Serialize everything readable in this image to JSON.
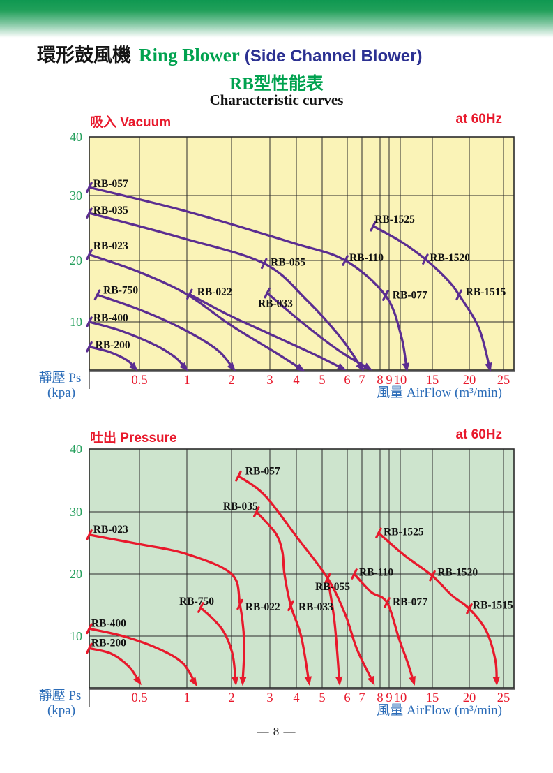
{
  "page": {
    "title_zh": "環形鼓風機",
    "title_en": "Ring Blower",
    "title_paren": "(Side Channel Blower)",
    "subtitle_zh": "RB型性能表",
    "subtitle_en": "Characteristic curves",
    "page_number": "— 8 —"
  },
  "colors": {
    "accent_green": "#00a24f",
    "navy": "#2c3192",
    "red": "#e8192c",
    "purple": "#5b2d91",
    "vacuum_bg": "#faf3b7",
    "pressure_bg": "#cde4cd",
    "caption_blue": "#2b6cb8",
    "ytick_green": "#27a05e",
    "grid": "#2a2a2a"
  },
  "axis_captions": {
    "y_zh": "靜壓",
    "y_en": "Ps",
    "y_unit": "(kpa)",
    "x_zh": "風量",
    "x_en": "AirFlow",
    "x_unit": "(m³/min)"
  },
  "chart_data": [
    {
      "type": "line",
      "title": "吸入 Vacuum",
      "condition": "at 60Hz",
      "bg_color": "#faf3b7",
      "curve_color": "#5b2d91",
      "xlabel": "風量 AirFlow (m³/min)",
      "ylabel": "靜壓 Ps (kpa)",
      "x_tick_labels": [
        "0.5",
        "1",
        "2",
        "3",
        "4",
        "5",
        "6",
        "7",
        "8",
        "9",
        "10",
        "15",
        "20",
        "25"
      ],
      "x_tick_values": [
        0.5,
        1,
        2,
        3,
        4,
        5,
        6,
        7,
        8,
        9,
        10,
        15,
        20,
        25
      ],
      "y_tick_labels": [
        "40",
        "30",
        "20",
        "10"
      ],
      "y_tick_values": [
        40,
        30,
        20,
        10
      ],
      "x_range": [
        0.25,
        25
      ],
      "y_range": [
        1.5,
        40
      ],
      "series": [
        {
          "name": "RB-057",
          "label_pos": [
            0.27,
            33.0
          ],
          "points": [
            [
              0.25,
              31.4
            ],
            [
              1.03,
              27.5
            ],
            [
              3.87,
              22.7
            ],
            [
              5.92,
              20.0
            ],
            [
              8.6,
              14.3
            ],
            [
              10.1,
              7.7
            ],
            [
              11.0,
              1.75
            ]
          ]
        },
        {
          "name": "RB-035",
          "label_pos": [
            0.27,
            28.6
          ],
          "points": [
            [
              0.25,
              27.3
            ],
            [
              0.94,
              23.5
            ],
            [
              2.85,
              19.5
            ],
            [
              4.41,
              13.5
            ],
            [
              5.78,
              7.0
            ],
            [
              7.0,
              1.75
            ]
          ]
        },
        {
          "name": "RB-023",
          "label_pos": [
            0.27,
            23.1
          ],
          "points": [
            [
              0.25,
              20.9
            ],
            [
              0.5,
              18.1
            ],
            [
              1.0,
              14.5
            ],
            [
              1.97,
              9.5
            ],
            [
              3.21,
              4.6
            ],
            [
              4.22,
              1.6
            ]
          ]
        },
        {
          "name": "RB-750",
          "label_pos": [
            0.32,
            16.1
          ],
          "points": [
            [
              0.29,
              14.4
            ],
            [
              0.5,
              12.0
            ],
            [
              0.94,
              8.9
            ],
            [
              1.66,
              5.2
            ],
            [
              2.05,
              1.75
            ]
          ]
        },
        {
          "name": "RB-400",
          "label_pos": [
            0.27,
            11.6
          ],
          "points": [
            [
              0.25,
              10.0
            ],
            [
              0.41,
              8.4
            ],
            [
              0.68,
              5.8
            ],
            [
              0.88,
              3.7
            ],
            [
              0.99,
              1.75
            ]
          ]
        },
        {
          "name": "RB-200",
          "label_pos": [
            0.28,
            6.9
          ],
          "points": [
            [
              0.25,
              5.6
            ],
            [
              0.35,
              4.7
            ],
            [
              0.44,
              3.2
            ],
            [
              0.48,
              1.75
            ]
          ]
        },
        {
          "name": "RB-022",
          "label_pos": [
            1.23,
            15.8
          ],
          "points": [
            [
              1.06,
              14.5
            ],
            [
              1.97,
              11.0
            ],
            [
              3.08,
              7.7
            ],
            [
              4.68,
              4.3
            ],
            [
              5.84,
              1.75
            ]
          ]
        },
        {
          "name": "RB-033",
          "label_pos": [
            2.69,
            13.9
          ],
          "points": [
            [
              2.93,
              14.7
            ],
            [
              4.41,
              9.2
            ],
            [
              5.78,
              4.6
            ],
            [
              7.42,
              1.75
            ]
          ]
        },
        {
          "name": "RB-055",
          "label_pos": [
            3.03,
            20.6
          ],
          "points": [],
          "mark": [
            2.85,
            19.5
          ]
        },
        {
          "name": "RB-110",
          "label_pos": [
            6.14,
            21.3
          ],
          "points": [],
          "mark": [
            5.92,
            20.0
          ]
        },
        {
          "name": "RB-077",
          "label_pos": [
            9.3,
            15.3
          ],
          "points": [],
          "mark": [
            8.6,
            14.3
          ]
        },
        {
          "name": "RB-1525",
          "label_pos": [
            7.7,
            27.2
          ],
          "points": [
            [
              7.62,
              25.3
            ],
            [
              10.1,
              22.9
            ],
            [
              13.9,
              20.2
            ],
            [
              17.0,
              16.9
            ],
            [
              18.6,
              14.4
            ],
            [
              21.4,
              8.9
            ],
            [
              23.0,
              1.75
            ]
          ]
        },
        {
          "name": "RB-1520",
          "label_pos": [
            14.6,
            21.3
          ],
          "points": [],
          "mark": [
            13.9,
            20.2
          ]
        },
        {
          "name": "RB-1515",
          "label_pos": [
            19.5,
            15.8
          ],
          "points": [],
          "mark": [
            18.6,
            14.4
          ]
        }
      ]
    },
    {
      "type": "line",
      "title": "吐出 Pressure",
      "condition": "at 60Hz",
      "bg_color": "#cde4cd",
      "curve_color": "#e8192c",
      "xlabel": "風量 AirFlow (m³/min)",
      "ylabel": "靜壓 Ps (kpa)",
      "x_tick_labels": [
        "0.5",
        "1",
        "2",
        "3",
        "4",
        "5",
        "6",
        "7",
        "8",
        "9",
        "10",
        "15",
        "20",
        "25"
      ],
      "x_tick_values": [
        0.5,
        1,
        2,
        3,
        4,
        5,
        6,
        7,
        8,
        9,
        10,
        15,
        20,
        25
      ],
      "y_tick_labels": [
        "40",
        "30",
        "20",
        "10"
      ],
      "y_tick_values": [
        40,
        30,
        20,
        10
      ],
      "x_range": [
        0.25,
        25
      ],
      "y_range": [
        1.5,
        40
      ],
      "series": [
        {
          "name": "RB-057",
          "label_pos": [
            2.36,
            37.4
          ],
          "points": [
            [
              2.18,
              35.7
            ],
            [
              2.87,
              32.6
            ],
            [
              4.08,
              25.6
            ],
            [
              5.22,
              19.3
            ],
            [
              5.92,
              13.5
            ],
            [
              6.67,
              7.8
            ],
            [
              7.62,
              2.4
            ]
          ]
        },
        {
          "name": "RB-035",
          "label_pos": [
            1.81,
            31.8
          ],
          "points": [
            [
              2.65,
              30.0
            ],
            [
              3.21,
              26.6
            ],
            [
              3.47,
              23.6
            ],
            [
              3.55,
              20.0
            ],
            [
              3.79,
              14.9
            ],
            [
              4.19,
              9.9
            ],
            [
              4.49,
              2.4
            ]
          ]
        },
        {
          "name": "RB-023",
          "label_pos": [
            0.27,
            28.1
          ],
          "points": [
            [
              0.25,
              26.3
            ],
            [
              0.5,
              24.8
            ],
            [
              1.0,
              23.2
            ],
            [
              2.0,
              20.0
            ],
            [
              2.22,
              15.1
            ],
            [
              2.33,
              9.0
            ],
            [
              2.29,
              2.4
            ]
          ]
        },
        {
          "name": "RB-750",
          "label_pos": [
            0.92,
            16.5
          ],
          "points": [
            [
              1.31,
              14.6
            ],
            [
              1.78,
              11.2
            ],
            [
              2.02,
              7.2
            ],
            [
              2.11,
              2.4
            ]
          ]
        },
        {
          "name": "RB-400",
          "label_pos": [
            0.26,
            13.0
          ],
          "points": [
            [
              0.25,
              11.2
            ],
            [
              0.43,
              9.9
            ],
            [
              0.72,
              7.8
            ],
            [
              0.96,
              5.5
            ],
            [
              1.19,
              2.2
            ]
          ]
        },
        {
          "name": "RB-200",
          "label_pos": [
            0.26,
            9.8
          ],
          "points": [
            [
              0.25,
              8.0
            ],
            [
              0.36,
              7.1
            ],
            [
              0.45,
              4.9
            ],
            [
              0.5,
              2.4
            ]
          ]
        },
        {
          "name": "RB-022",
          "label_pos": [
            2.36,
            15.6
          ],
          "points": [],
          "mark": [
            2.22,
            15.1
          ]
        },
        {
          "name": "RB-033",
          "label_pos": [
            4.08,
            15.6
          ],
          "points": [],
          "mark": [
            3.79,
            14.9
          ]
        },
        {
          "name": "RB-055",
          "label_pos": [
            4.73,
            18.9
          ],
          "points": [
            [
              5.22,
              19.3
            ],
            [
              5.49,
              12.4
            ],
            [
              5.69,
              2.4
            ]
          ]
        },
        {
          "name": "RB-110",
          "label_pos": [
            6.81,
            21.2
          ],
          "points": [
            [
              6.48,
              20.0
            ],
            [
              7.5,
              17.1
            ],
            [
              8.77,
              15.4
            ],
            [
              9.9,
              9.5
            ],
            [
              11.2,
              5.5
            ],
            [
              12.1,
              2.4
            ]
          ]
        },
        {
          "name": "RB-077",
          "label_pos": [
            9.31,
            16.4
          ],
          "points": [],
          "mark": [
            8.77,
            15.4
          ]
        },
        {
          "name": "RB-1525",
          "label_pos": [
            8.38,
            27.7
          ],
          "points": [
            [
              7.92,
              26.6
            ],
            [
              10.65,
              23.0
            ],
            [
              15.0,
              19.7
            ],
            [
              17.6,
              16.6
            ],
            [
              20.0,
              14.4
            ],
            [
              22.45,
              10.9
            ],
            [
              23.8,
              6.1
            ],
            [
              24.0,
              2.4
            ]
          ]
        },
        {
          "name": "RB-1520",
          "label_pos": [
            15.7,
            21.2
          ],
          "points": [],
          "mark": [
            15.0,
            19.7
          ]
        },
        {
          "name": "RB-1515",
          "label_pos": [
            20.5,
            15.9
          ],
          "points": [],
          "mark": [
            20.0,
            14.4
          ]
        }
      ]
    }
  ]
}
